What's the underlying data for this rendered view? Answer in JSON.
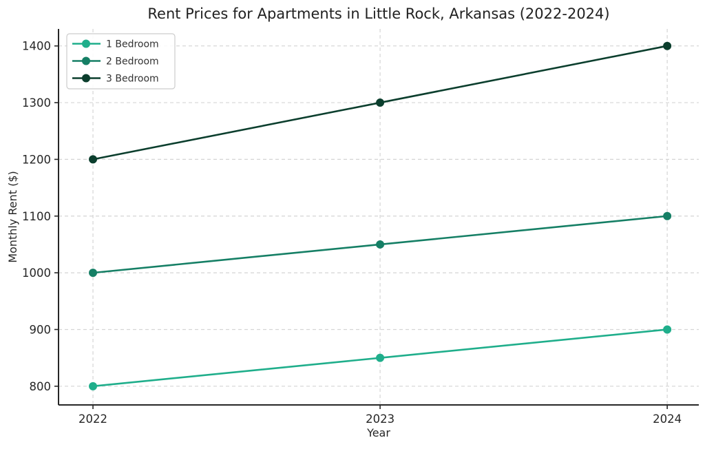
{
  "chart_data": {
    "type": "line",
    "title": "Rent Prices for Apartments in Little Rock, Arkansas (2022-2024)",
    "xlabel": "Year",
    "ylabel": "Monthly Rent ($)",
    "x": [
      2022,
      2023,
      2024
    ],
    "xtick_labels": [
      "2022",
      "2023",
      "2024"
    ],
    "yticks": [
      800,
      900,
      1000,
      1100,
      1200,
      1300,
      1400
    ],
    "xlim": [
      2021.88,
      2024.11
    ],
    "ylim": [
      767,
      1430
    ],
    "grid": {
      "visible": true,
      "style": "dashed",
      "color": "#d4d4d4"
    },
    "axis_color": "#262626",
    "legend": {
      "position": "upper left",
      "entries": [
        "1 Bedroom",
        "2 Bedroom",
        "3 Bedroom"
      ],
      "border_color": "#cccccc",
      "background": "#ffffff"
    },
    "series": [
      {
        "name": "1 Bedroom",
        "color": "#1fae8b",
        "marker": "circle",
        "values": [
          800,
          850,
          900
        ]
      },
      {
        "name": "2 Bedroom",
        "color": "#157f65",
        "marker": "circle",
        "values": [
          1000,
          1050,
          1100
        ]
      },
      {
        "name": "3 Bedroom",
        "color": "#0b3e2d",
        "marker": "circle",
        "values": [
          1200,
          1300,
          1400
        ]
      }
    ]
  }
}
